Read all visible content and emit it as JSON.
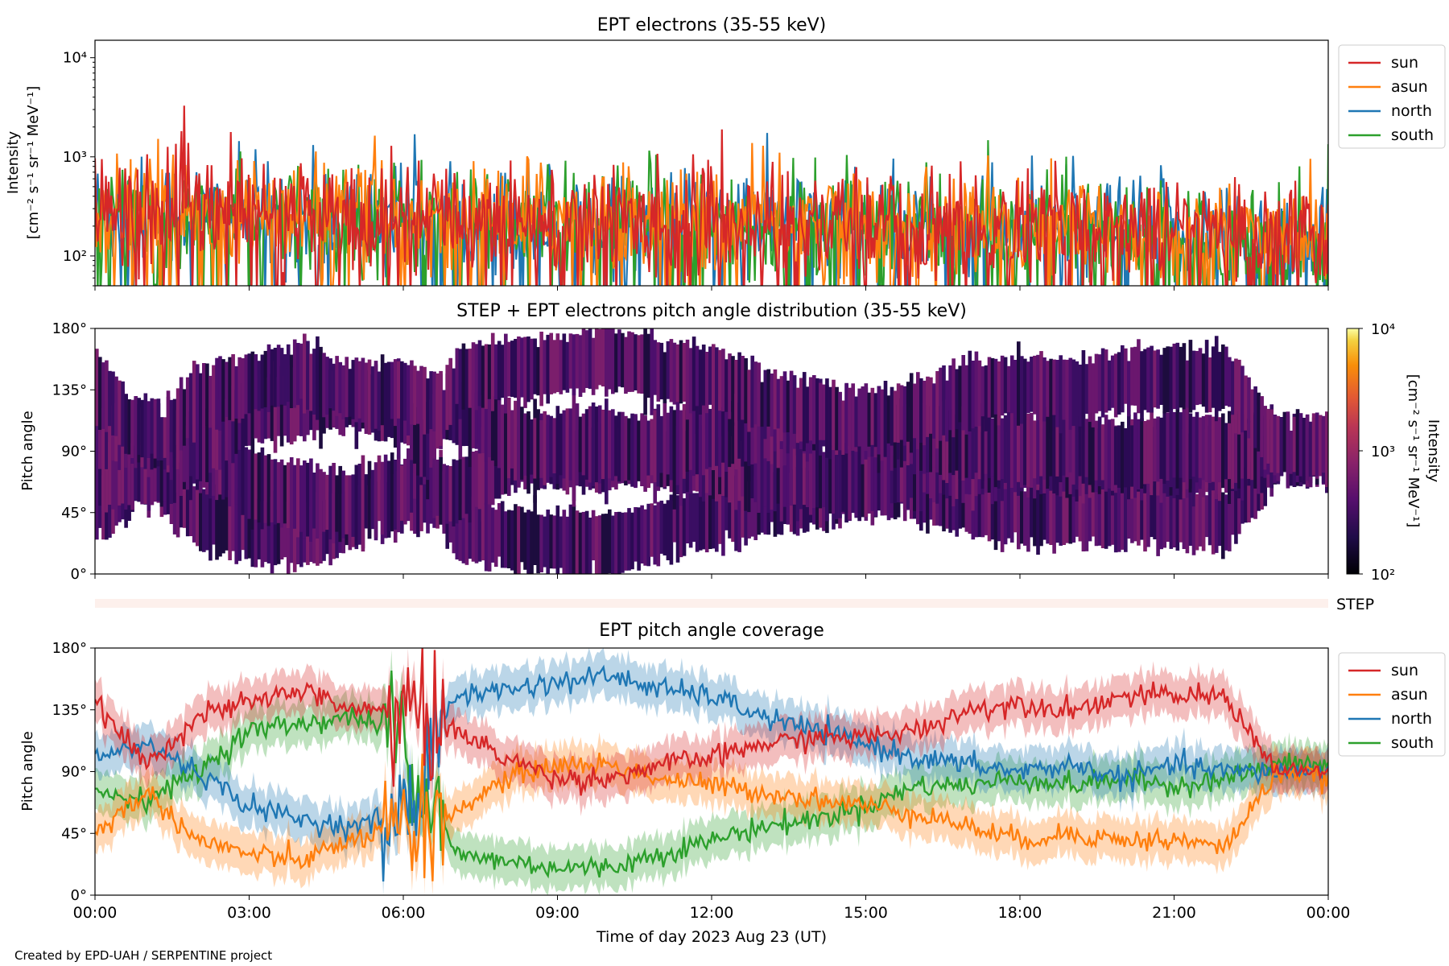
{
  "footer": "Created by EPD-UAH / SERPENTINE project",
  "colors": {
    "sun": "#d62728",
    "asun": "#ff7f0e",
    "north": "#1f77b4",
    "south": "#2ca02c",
    "step_strip": "#fdf0ec"
  },
  "chart_data": [
    {
      "type": "line",
      "title": "EPT electrons (35-55 keV)",
      "ylabel": [
        "Intensity",
        "[cm⁻² s⁻¹ sr⁻¹ MeV⁻¹]"
      ],
      "yscale": "log",
      "ylim": [
        50,
        15000
      ],
      "yticks": [
        {
          "v": 100,
          "label": "10²"
        },
        {
          "v": 1000,
          "label": "10³"
        },
        {
          "v": 10000,
          "label": "10⁴"
        }
      ],
      "xlim_hours": [
        0,
        24
      ],
      "legend": "outside-right",
      "series": [
        {
          "name": "sun",
          "typical": 250,
          "spread": 0.28
        },
        {
          "name": "asun",
          "typical": 250,
          "spread": 0.28
        },
        {
          "name": "north",
          "typical": 240,
          "spread": 0.28
        },
        {
          "name": "south",
          "typical": 230,
          "spread": 0.28
        }
      ]
    },
    {
      "type": "heatmap",
      "title": "STEP + EPT electrons pitch angle distribution (35-55 keV)",
      "ylabel": "Pitch angle",
      "ylim": [
        0,
        180
      ],
      "yticks": [
        {
          "v": 0,
          "label": "0°"
        },
        {
          "v": 45,
          "label": "45°"
        },
        {
          "v": 90,
          "label": "90°"
        },
        {
          "v": 135,
          "label": "135°"
        },
        {
          "v": 180,
          "label": "180°"
        }
      ],
      "xlim_hours": [
        0,
        24
      ],
      "colorbar": {
        "scale": "log",
        "range": [
          100,
          10000
        ],
        "colormap": "inferno",
        "ticks": [
          "10²",
          "10³",
          "10⁴"
        ],
        "label": [
          "Intensity",
          "[cm⁻² s⁻¹ sr⁻¹ MeV⁻¹]"
        ]
      },
      "typical_intensity": 300
    },
    {
      "type": "strip",
      "label": "STEP"
    },
    {
      "type": "line",
      "title": "EPT pitch angle coverage",
      "ylabel": "Pitch angle",
      "ylim": [
        0,
        180
      ],
      "yticks": [
        {
          "v": 0,
          "label": "0°"
        },
        {
          "v": 45,
          "label": "45°"
        },
        {
          "v": 90,
          "label": "90°"
        },
        {
          "v": 135,
          "label": "135°"
        },
        {
          "v": 180,
          "label": "180°"
        }
      ],
      "xlim_hours": [
        0,
        24
      ],
      "xticks": [
        {
          "v": 0,
          "label": "00:00"
        },
        {
          "v": 3,
          "label": "03:00"
        },
        {
          "v": 6,
          "label": "06:00"
        },
        {
          "v": 9,
          "label": "09:00"
        },
        {
          "v": 12,
          "label": "12:00"
        },
        {
          "v": 15,
          "label": "15:00"
        },
        {
          "v": 18,
          "label": "18:00"
        },
        {
          "v": 21,
          "label": "21:00"
        },
        {
          "v": 24,
          "label": "00:00"
        }
      ],
      "xlabel": "Time of day 2023 Aug 23 (UT)",
      "legend": "outside-right",
      "band_halfwidth_deg": 15,
      "series": [
        {
          "name": "sun",
          "x": [
            0,
            1,
            2,
            3,
            4,
            5,
            6,
            7,
            8,
            9,
            10,
            11,
            12,
            13,
            14,
            15,
            16,
            17,
            18,
            19,
            20,
            21,
            22,
            23,
            24
          ],
          "y": [
            140,
            95,
            130,
            140,
            150,
            135,
            135,
            120,
            100,
            85,
            85,
            95,
            100,
            110,
            115,
            115,
            120,
            135,
            140,
            135,
            145,
            145,
            145,
            90,
            90
          ]
        },
        {
          "name": "asun",
          "x": [
            0,
            1,
            2,
            3,
            4,
            5,
            6,
            7,
            8,
            9,
            10,
            11,
            12,
            13,
            14,
            15,
            16,
            17,
            18,
            19,
            20,
            21,
            22,
            23,
            24
          ],
          "y": [
            45,
            75,
            40,
            30,
            25,
            40,
            50,
            60,
            85,
            95,
            95,
            85,
            80,
            75,
            70,
            65,
            60,
            50,
            40,
            45,
            40,
            40,
            35,
            90,
            85
          ]
        },
        {
          "name": "north",
          "x": [
            0,
            1,
            2,
            3,
            4,
            5,
            6,
            7,
            8,
            9,
            10,
            11,
            12,
            13,
            14,
            15,
            16,
            17,
            18,
            19,
            20,
            21,
            22,
            23,
            24
          ],
          "y": [
            100,
            110,
            90,
            65,
            55,
            50,
            60,
            145,
            150,
            155,
            160,
            150,
            145,
            130,
            120,
            110,
            100,
            95,
            90,
            95,
            85,
            95,
            90,
            90,
            90
          ]
        },
        {
          "name": "south",
          "x": [
            0,
            1,
            2,
            3,
            4,
            5,
            6,
            7,
            8,
            9,
            10,
            11,
            12,
            13,
            14,
            15,
            16,
            17,
            18,
            19,
            20,
            21,
            22,
            23,
            24
          ],
          "y": [
            75,
            70,
            90,
            120,
            125,
            130,
            120,
            30,
            25,
            20,
            20,
            30,
            40,
            50,
            55,
            65,
            80,
            80,
            85,
            80,
            85,
            80,
            85,
            95,
            95
          ]
        }
      ]
    }
  ]
}
